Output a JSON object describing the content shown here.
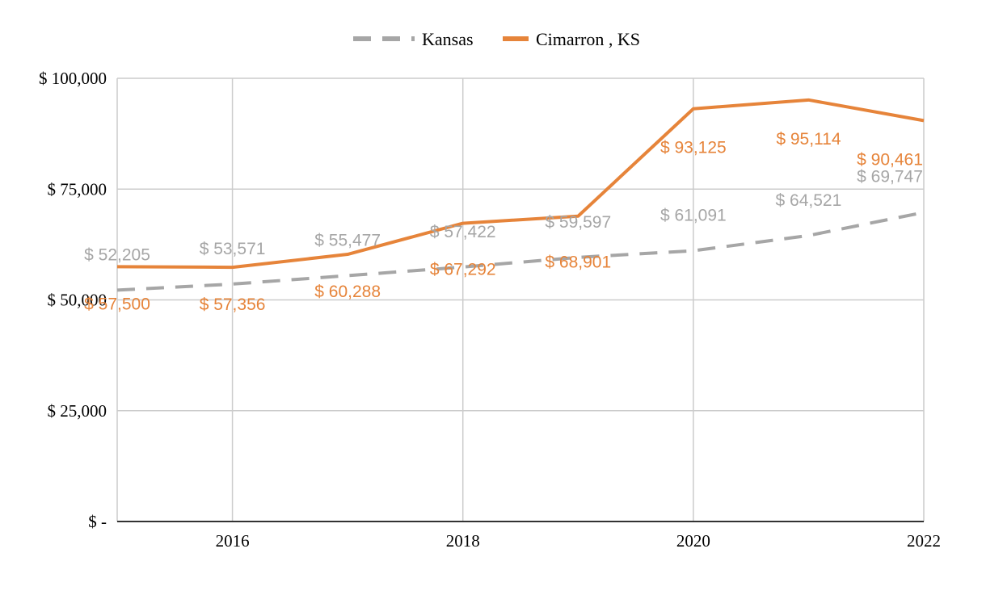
{
  "chart_data": {
    "type": "line",
    "title": "",
    "xlabel": "",
    "ylabel": "",
    "x": [
      2015,
      2016,
      2017,
      2018,
      2019,
      2020,
      2021,
      2022
    ],
    "xlim": [
      2015,
      2022
    ],
    "x_ticks": [
      2016,
      2018,
      2020,
      2022
    ],
    "x_tick_labels": [
      "2016",
      "2018",
      "2020",
      "2022"
    ],
    "ylim": [
      0,
      100000
    ],
    "y_ticks": [
      0,
      25000,
      50000,
      75000,
      100000
    ],
    "y_tick_labels": [
      "$ -",
      "$ 25,000",
      "$ 50,000",
      "$ 75,000",
      "$ 100,000"
    ],
    "grid": true,
    "legend_position": "top-center",
    "series": [
      {
        "name": "Kansas",
        "color": "#a6a6a6",
        "style": "dashed",
        "values": [
          52205,
          53571,
          55477,
          57422,
          59597,
          61091,
          64521,
          69747
        ],
        "labels": [
          "$ 52,205",
          "$ 53,571",
          "$ 55,477",
          "$ 57,422",
          "$ 59,597",
          "$ 61,091",
          "$ 64,521",
          "$ 69,747"
        ]
      },
      {
        "name": "Cimarron , KS",
        "color": "#e6843a",
        "style": "solid",
        "values": [
          57500,
          57356,
          60288,
          67292,
          68901,
          93125,
          95114,
          90461
        ],
        "labels": [
          "$ 57,500",
          "$ 57,356",
          "$ 60,288",
          "$ 67,292",
          "$ 68,901",
          "$ 93,125",
          "$ 95,114",
          "$ 90,461"
        ]
      }
    ]
  }
}
